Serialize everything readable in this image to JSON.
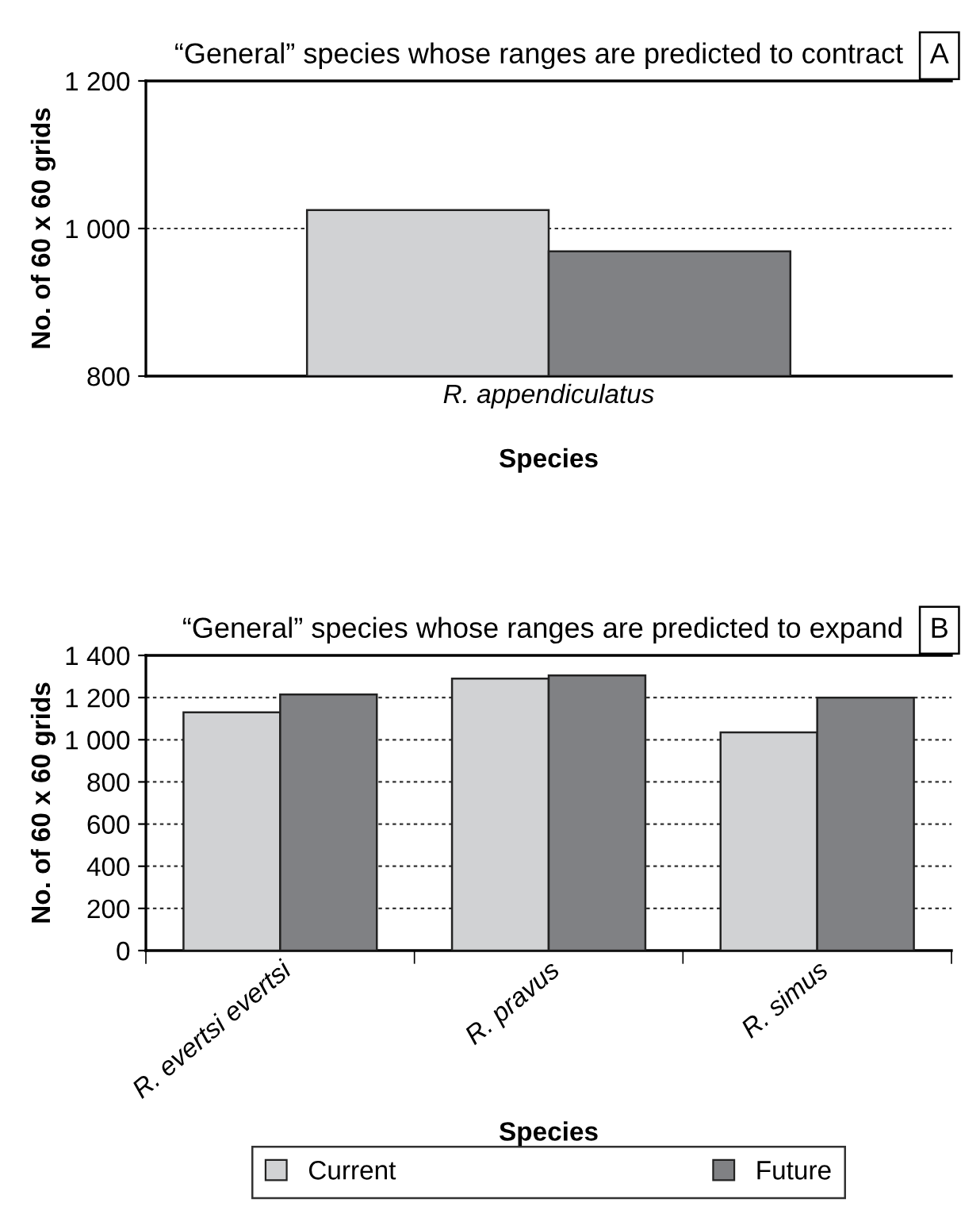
{
  "chart_data": [
    {
      "type": "bar",
      "title": "“General” species whose ranges are predicted to contract",
      "annotations": [
        "A"
      ],
      "xlabel": "Species",
      "ylabel": "No. of 60 x 60 grids",
      "categories": [
        "R. appendiculatus"
      ],
      "series": [
        {
          "color": "#d1d2d4",
          "values": [
            1025
          ]
        },
        {
          "color": "#808184",
          "values": [
            969
          ]
        }
      ],
      "ylim": [
        800,
        1200
      ],
      "yticks": [
        800,
        {
          "value": 1000,
          "label": "1 000"
        },
        {
          "value": 1200,
          "label": "1 200"
        }
      ],
      "grid": "y"
    },
    {
      "type": "bar",
      "title": "“General” species whose ranges are predicted to expand",
      "annotations": [
        "B"
      ],
      "xlabel": "Species",
      "ylabel": "No. of 60 x 60 grids",
      "categories": [
        "R. evertsi evertsi",
        "R. pravus",
        "R. simus"
      ],
      "series": [
        {
          "name": "Current",
          "color": "#d1d2d4",
          "values": [
            1130,
            1290,
            1035
          ]
        },
        {
          "name": "Future",
          "color": "#808184",
          "values": [
            1215,
            1305,
            1200
          ]
        }
      ],
      "ylim": [
        0,
        1400
      ],
      "yticks": [
        0,
        200,
        400,
        600,
        800,
        {
          "value": 1000,
          "label": "1 000"
        },
        {
          "value": 1200,
          "label": "1 200"
        },
        {
          "value": 1400,
          "label": "1 400"
        }
      ],
      "grid": "y",
      "legend": "bottom"
    }
  ]
}
